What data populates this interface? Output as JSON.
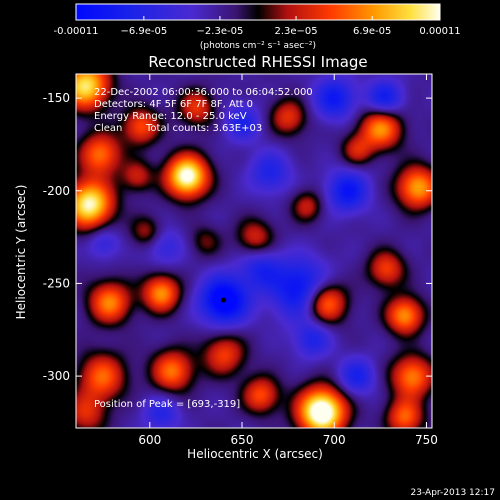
{
  "chart_data": {
    "type": "heatmap",
    "title": "Reconstructed RHESSI Image",
    "xlabel": "Heliocentric X (arcsec)",
    "ylabel": "Heliocentric Y (arcsec)",
    "xlim": [
      560,
      753
    ],
    "ylim": [
      -328,
      -137
    ],
    "xticks": [
      "600",
      "650",
      "700",
      "750"
    ],
    "yticks": [
      "-150",
      "-200",
      "-250",
      "-300"
    ],
    "xtick_values": [
      600,
      650,
      700,
      750
    ],
    "ytick_values": [
      -150,
      -200,
      -250,
      -300
    ],
    "colorbar": {
      "min": -0.00011,
      "max": 0.00011,
      "tick_labels": [
        "-0.00011",
        "−6.9e-05",
        "−2.3e-05",
        "2.3e−05",
        "6.9e-05",
        "0.00011"
      ],
      "tick_values": [
        -0.00011,
        -6.9e-05,
        -2.3e-05,
        2.3e-05,
        6.9e-05,
        0.00011
      ],
      "unit_label": "(photons cm⁻² s⁻¹ asec⁻²)"
    },
    "annotations": {
      "time": "22-Dec-2002 06:00:36.000 to 06:04:52.000",
      "detectors": "Detectors: 4F 5F 6F 7F 8F, Att 0",
      "energy": "Energy Range: 12.0 - 25.0 keV",
      "method": "Clean",
      "counts": "Total counts: 3.63E+03",
      "peak": "Position of Peak = [693,-319]"
    },
    "marker_point": {
      "x": 640,
      "y": -259
    },
    "bright_sources": [
      {
        "x": 565,
        "y": -143,
        "amp": 1.1,
        "s": 9
      },
      {
        "x": 567,
        "y": -207,
        "amp": 1.2,
        "s": 9
      },
      {
        "x": 573,
        "y": -180,
        "amp": 0.75,
        "s": 8
      },
      {
        "x": 578,
        "y": -260,
        "amp": 0.8,
        "s": 8
      },
      {
        "x": 574,
        "y": -300,
        "amp": 0.7,
        "s": 9
      },
      {
        "x": 565,
        "y": -320,
        "amp": 0.5,
        "s": 8
      },
      {
        "x": 595,
        "y": -165,
        "amp": 0.65,
        "s": 7
      },
      {
        "x": 593,
        "y": -192,
        "amp": 0.45,
        "s": 6
      },
      {
        "x": 620,
        "y": -192,
        "amp": 1.3,
        "s": 8
      },
      {
        "x": 625,
        "y": -155,
        "amp": 0.55,
        "s": 7
      },
      {
        "x": 606,
        "y": -255,
        "amp": 0.85,
        "s": 7
      },
      {
        "x": 598,
        "y": -222,
        "amp": 0.4,
        "s": 6
      },
      {
        "x": 612,
        "y": -297,
        "amp": 0.75,
        "s": 8
      },
      {
        "x": 640,
        "y": -288,
        "amp": 0.6,
        "s": 8
      },
      {
        "x": 657,
        "y": -225,
        "amp": 0.5,
        "s": 7
      },
      {
        "x": 660,
        "y": -310,
        "amp": 0.65,
        "s": 7
      },
      {
        "x": 675,
        "y": -160,
        "amp": 0.55,
        "s": 7
      },
      {
        "x": 685,
        "y": -208,
        "amp": 0.45,
        "s": 6
      },
      {
        "x": 695,
        "y": -260,
        "amp": 0.9,
        "s": 8
      },
      {
        "x": 712,
        "y": -178,
        "amp": 0.45,
        "s": 6
      },
      {
        "x": 693,
        "y": -319,
        "amp": 1.45,
        "s": 9
      },
      {
        "x": 725,
        "y": -166,
        "amp": 0.85,
        "s": 8
      },
      {
        "x": 745,
        "y": -198,
        "amp": 0.9,
        "s": 8
      },
      {
        "x": 728,
        "y": -242,
        "amp": 0.6,
        "s": 7
      },
      {
        "x": 738,
        "y": -267,
        "amp": 0.85,
        "s": 7
      },
      {
        "x": 742,
        "y": -300,
        "amp": 0.8,
        "s": 8
      },
      {
        "x": 738,
        "y": -322,
        "amp": 0.7,
        "s": 7
      },
      {
        "x": 630,
        "y": -227,
        "amp": 0.3,
        "s": 6
      }
    ],
    "dark_sources": [
      {
        "x": 640,
        "y": -259,
        "amp": 0.95,
        "s": 9
      },
      {
        "x": 682,
        "y": -253,
        "amp": 0.75,
        "s": 11
      },
      {
        "x": 660,
        "y": -242,
        "amp": 0.45,
        "s": 8
      },
      {
        "x": 707,
        "y": -200,
        "amp": 0.65,
        "s": 8
      },
      {
        "x": 700,
        "y": -150,
        "amp": 0.6,
        "s": 8
      },
      {
        "x": 727,
        "y": -150,
        "amp": 0.6,
        "s": 7
      },
      {
        "x": 665,
        "y": -190,
        "amp": 0.45,
        "s": 8
      },
      {
        "x": 608,
        "y": -230,
        "amp": 0.35,
        "s": 7
      },
      {
        "x": 688,
        "y": -280,
        "amp": 0.45,
        "s": 7
      },
      {
        "x": 712,
        "y": -300,
        "amp": 0.5,
        "s": 7
      },
      {
        "x": 606,
        "y": -320,
        "amp": 0.4,
        "s": 7
      },
      {
        "x": 575,
        "y": -228,
        "amp": 0.35,
        "s": 6
      },
      {
        "x": 650,
        "y": -163,
        "amp": 0.45,
        "s": 7
      }
    ]
  },
  "footer": {
    "date": "23-Apr-2013 12:17"
  },
  "colors": {
    "background": "#000000",
    "foreground": "#ffffff",
    "marker": "#000000"
  }
}
